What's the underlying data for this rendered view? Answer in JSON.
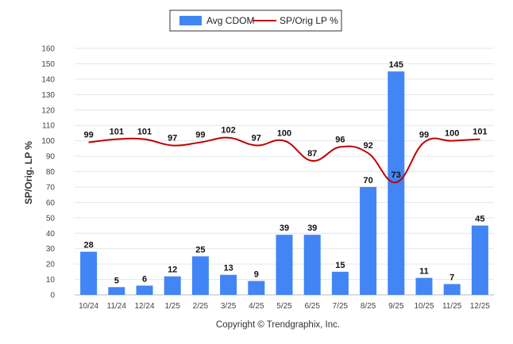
{
  "chart_data": {
    "type": "bar+line",
    "title": "",
    "xlabel": "",
    "ylabel": "SP/Orig. LP %",
    "ylim": [
      0,
      160
    ],
    "ytick_step": 10,
    "grid": true,
    "legend_position": "top-center",
    "categories": [
      "10/24",
      "11/24",
      "12/24",
      "1/25",
      "2/25",
      "3/25",
      "4/25",
      "5/25",
      "6/25",
      "7/25",
      "8/25",
      "9/25",
      "10/25",
      "11/25",
      "12/25"
    ],
    "series": [
      {
        "name": "Avg CDOM",
        "type": "bar",
        "color": "#4285f4",
        "values": [
          28,
          5,
          6,
          12,
          25,
          13,
          9,
          39,
          39,
          15,
          70,
          145,
          11,
          7,
          45
        ]
      },
      {
        "name": "SP/Orig LP %",
        "type": "line",
        "color": "#c00000",
        "values": [
          99,
          101,
          101,
          97,
          99,
          102,
          97,
          100,
          87,
          96,
          92,
          73,
          99,
          100,
          101
        ]
      }
    ],
    "footer": "Copyright © Trendgraphix, Inc."
  }
}
